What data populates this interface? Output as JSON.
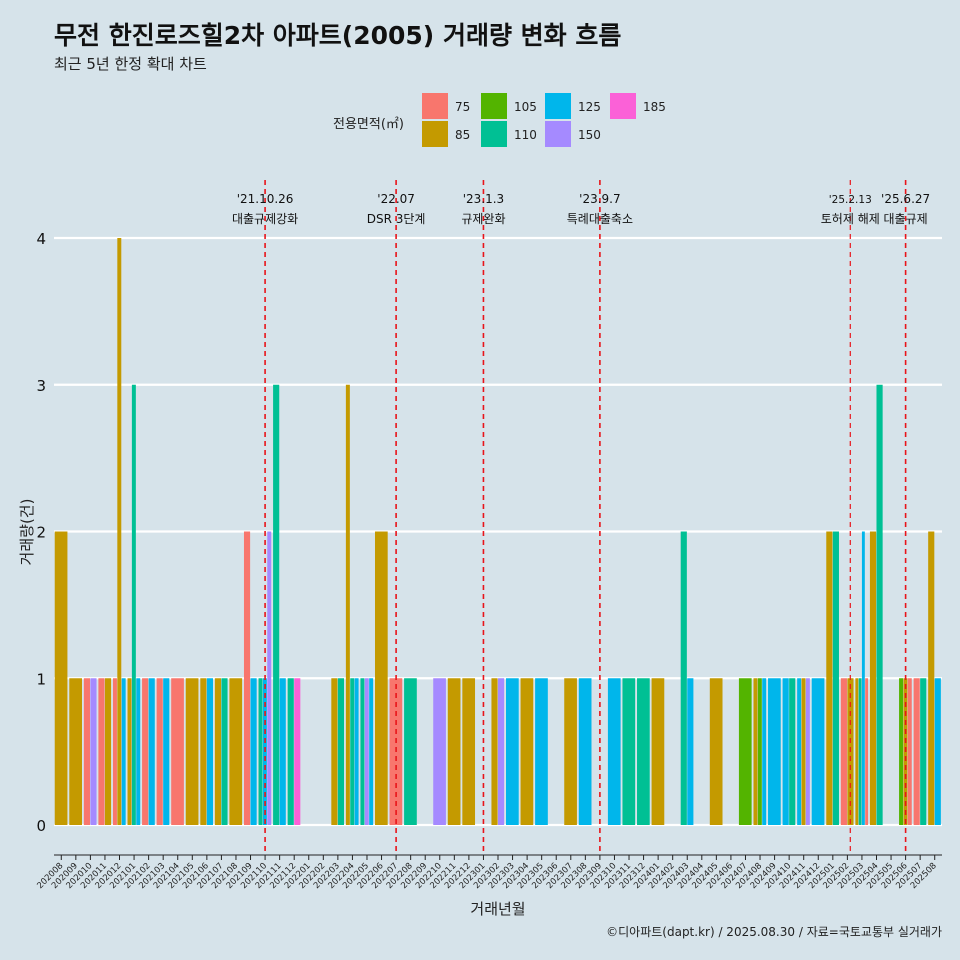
{
  "title": "무전 한진로즈힐2차 아파트(2005) 거래량 변화 흐름",
  "subtitle": "최근 5년 한정 확대 차트",
  "caption": "©디아파트(dapt.kr) / 2025.08.30 / 자료=국토교통부 실거래가",
  "legend": {
    "title": "전용면적(㎡)",
    "entries": [
      {
        "label": "75",
        "color": "#F8766D"
      },
      {
        "label": "85",
        "color": "#C49A00"
      },
      {
        "label": "105",
        "color": "#53B400"
      },
      {
        "label": "110",
        "color": "#00C094"
      },
      {
        "label": "125",
        "color": "#00B6EB"
      },
      {
        "label": "150",
        "color": "#A58AFF"
      },
      {
        "label": "185",
        "color": "#FB61D7"
      }
    ]
  },
  "chart_data": {
    "type": "bar",
    "xlabel": "거래년월",
    "ylabel": "거래량(건)",
    "ylim": [
      0,
      4
    ],
    "yticks": [
      0,
      1,
      2,
      3,
      4
    ],
    "grid": true,
    "legend_position": "top",
    "categories": [
      "202008",
      "202009",
      "202010",
      "202011",
      "202012",
      "202101",
      "202102",
      "202103",
      "202104",
      "202105",
      "202106",
      "202107",
      "202108",
      "202109",
      "202110",
      "202111",
      "202112",
      "202201",
      "202202",
      "202203",
      "202204",
      "202205",
      "202206",
      "202207",
      "202208",
      "202209",
      "202210",
      "202211",
      "202212",
      "202301",
      "202302",
      "202303",
      "202304",
      "202305",
      "202306",
      "202307",
      "202308",
      "202309",
      "202310",
      "202311",
      "202312",
      "202401",
      "202402",
      "202403",
      "202404",
      "202405",
      "202406",
      "202407",
      "202408",
      "202409",
      "202410",
      "202411",
      "202412",
      "202501",
      "202502",
      "202503",
      "202504",
      "202505",
      "202506",
      "202507",
      "202508"
    ],
    "transactions": [
      {
        "month": "202008",
        "bars": [
          {
            "area": "85",
            "count": 2
          }
        ]
      },
      {
        "month": "202009",
        "bars": [
          {
            "area": "85",
            "count": 1
          }
        ]
      },
      {
        "month": "202010",
        "bars": [
          {
            "area": "75",
            "count": 1
          },
          {
            "area": "150",
            "count": 1
          }
        ]
      },
      {
        "month": "202011",
        "bars": [
          {
            "area": "75",
            "count": 1
          },
          {
            "area": "85",
            "count": 1
          }
        ]
      },
      {
        "month": "202012",
        "bars": [
          {
            "area": "75",
            "count": 1
          },
          {
            "area": "85",
            "count": 4
          },
          {
            "area": "125",
            "count": 1
          }
        ]
      },
      {
        "month": "202101",
        "bars": [
          {
            "area": "85",
            "count": 1
          },
          {
            "area": "110",
            "count": 3
          },
          {
            "area": "125",
            "count": 1
          }
        ]
      },
      {
        "month": "202102",
        "bars": [
          {
            "area": "75",
            "count": 1
          },
          {
            "area": "125",
            "count": 1
          }
        ]
      },
      {
        "month": "202103",
        "bars": [
          {
            "area": "75",
            "count": 1
          },
          {
            "area": "125",
            "count": 1
          }
        ]
      },
      {
        "month": "202104",
        "bars": [
          {
            "area": "75",
            "count": 1
          }
        ]
      },
      {
        "month": "202105",
        "bars": [
          {
            "area": "85",
            "count": 1
          }
        ]
      },
      {
        "month": "202106",
        "bars": [
          {
            "area": "85",
            "count": 1
          },
          {
            "area": "125",
            "count": 1
          }
        ]
      },
      {
        "month": "202107",
        "bars": [
          {
            "area": "85",
            "count": 1
          },
          {
            "area": "110",
            "count": 1
          }
        ]
      },
      {
        "month": "202108",
        "bars": [
          {
            "area": "85",
            "count": 1
          }
        ]
      },
      {
        "month": "202109",
        "bars": [
          {
            "area": "75",
            "count": 2
          },
          {
            "area": "125",
            "count": 1
          }
        ]
      },
      {
        "month": "202110",
        "bars": [
          {
            "area": "110",
            "count": 1
          },
          {
            "area": "125",
            "count": 1
          },
          {
            "area": "150",
            "count": 2
          }
        ]
      },
      {
        "month": "202111",
        "bars": [
          {
            "area": "110",
            "count": 3
          },
          {
            "area": "125",
            "count": 1
          }
        ]
      },
      {
        "month": "202112",
        "bars": [
          {
            "area": "110",
            "count": 1
          },
          {
            "area": "185",
            "count": 1
          }
        ]
      },
      {
        "month": "202201",
        "bars": []
      },
      {
        "month": "202202",
        "bars": []
      },
      {
        "month": "202203",
        "bars": [
          {
            "area": "85",
            "count": 1
          },
          {
            "area": "110",
            "count": 1
          }
        ]
      },
      {
        "month": "202204",
        "bars": [
          {
            "area": "85",
            "count": 3
          },
          {
            "area": "110",
            "count": 1
          },
          {
            "area": "125",
            "count": 1
          }
        ]
      },
      {
        "month": "202205",
        "bars": [
          {
            "area": "110",
            "count": 1
          },
          {
            "area": "150",
            "count": 1
          },
          {
            "area": "125",
            "count": 1
          }
        ]
      },
      {
        "month": "202206",
        "bars": [
          {
            "area": "85",
            "count": 2
          }
        ]
      },
      {
        "month": "202207",
        "bars": [
          {
            "area": "75",
            "count": 1
          }
        ]
      },
      {
        "month": "202208",
        "bars": [
          {
            "area": "110",
            "count": 1
          }
        ]
      },
      {
        "month": "202209",
        "bars": []
      },
      {
        "month": "202210",
        "bars": [
          {
            "area": "150",
            "count": 1
          }
        ]
      },
      {
        "month": "202211",
        "bars": [
          {
            "area": "85",
            "count": 1
          }
        ]
      },
      {
        "month": "202212",
        "bars": [
          {
            "area": "85",
            "count": 1
          }
        ]
      },
      {
        "month": "202301",
        "bars": []
      },
      {
        "month": "202302",
        "bars": [
          {
            "area": "85",
            "count": 1
          },
          {
            "area": "150",
            "count": 1
          }
        ]
      },
      {
        "month": "202303",
        "bars": [
          {
            "area": "125",
            "count": 1
          }
        ]
      },
      {
        "month": "202304",
        "bars": [
          {
            "area": "85",
            "count": 1
          }
        ]
      },
      {
        "month": "202305",
        "bars": [
          {
            "area": "125",
            "count": 1
          }
        ]
      },
      {
        "month": "202306",
        "bars": []
      },
      {
        "month": "202307",
        "bars": [
          {
            "area": "85",
            "count": 1
          }
        ]
      },
      {
        "month": "202308",
        "bars": [
          {
            "area": "125",
            "count": 1
          }
        ]
      },
      {
        "month": "202309",
        "bars": []
      },
      {
        "month": "202310",
        "bars": [
          {
            "area": "125",
            "count": 1
          }
        ]
      },
      {
        "month": "202311",
        "bars": [
          {
            "area": "110",
            "count": 1
          }
        ]
      },
      {
        "month": "202312",
        "bars": [
          {
            "area": "110",
            "count": 1
          }
        ]
      },
      {
        "month": "202401",
        "bars": [
          {
            "area": "85",
            "count": 1
          }
        ]
      },
      {
        "month": "202402",
        "bars": []
      },
      {
        "month": "202403",
        "bars": [
          {
            "area": "110",
            "count": 2
          },
          {
            "area": "125",
            "count": 1
          }
        ]
      },
      {
        "month": "202404",
        "bars": []
      },
      {
        "month": "202405",
        "bars": [
          {
            "area": "85",
            "count": 1
          }
        ]
      },
      {
        "month": "202406",
        "bars": []
      },
      {
        "month": "202407",
        "bars": [
          {
            "area": "105",
            "count": 1
          }
        ]
      },
      {
        "month": "202408",
        "bars": [
          {
            "area": "85",
            "count": 1
          },
          {
            "area": "105",
            "count": 1
          },
          {
            "area": "125",
            "count": 1
          }
        ]
      },
      {
        "month": "202409",
        "bars": [
          {
            "area": "125",
            "count": 1
          }
        ]
      },
      {
        "month": "202410",
        "bars": [
          {
            "area": "125",
            "count": 1
          },
          {
            "area": "110",
            "count": 1
          }
        ]
      },
      {
        "month": "202411",
        "bars": [
          {
            "area": "125",
            "count": 1
          },
          {
            "area": "85",
            "count": 1
          },
          {
            "area": "150",
            "count": 1
          }
        ]
      },
      {
        "month": "202412",
        "bars": [
          {
            "area": "125",
            "count": 1
          }
        ]
      },
      {
        "month": "202501",
        "bars": [
          {
            "area": "85",
            "count": 2
          },
          {
            "area": "110",
            "count": 2
          }
        ]
      },
      {
        "month": "202502",
        "bars": [
          {
            "area": "75",
            "count": 1
          },
          {
            "area": "85",
            "count": 1
          }
        ]
      },
      {
        "month": "202503",
        "bars": [
          {
            "area": "85",
            "count": 1
          },
          {
            "area": "110",
            "count": 1
          },
          {
            "area": "125",
            "count": 2
          },
          {
            "area": "75",
            "count": 1
          }
        ]
      },
      {
        "month": "202504",
        "bars": [
          {
            "area": "85",
            "count": 2
          },
          {
            "area": "110",
            "count": 3
          }
        ]
      },
      {
        "month": "202505",
        "bars": []
      },
      {
        "month": "202506",
        "bars": [
          {
            "area": "105",
            "count": 1
          },
          {
            "area": "85",
            "count": 1
          },
          {
            "area": "75",
            "count": 1
          }
        ]
      },
      {
        "month": "202507",
        "bars": [
          {
            "area": "75",
            "count": 1
          },
          {
            "area": "110",
            "count": 1
          }
        ]
      },
      {
        "month": "202508",
        "bars": [
          {
            "area": "85",
            "count": 2
          },
          {
            "area": "125",
            "count": 1
          }
        ]
      }
    ],
    "events": [
      {
        "date": "'21.10.26",
        "label": "대출규제강화",
        "month": "202110",
        "small": false
      },
      {
        "date": "'22.07",
        "label": "DSR 3단계",
        "month": "202207",
        "small": false
      },
      {
        "date": "'23.1.3",
        "label": "규제완화",
        "month": "202301",
        "small": false
      },
      {
        "date": "'23.9.7",
        "label": "특례대출축소",
        "month": "202309",
        "small": false
      },
      {
        "date": "'25.2.13",
        "label": "토허제 해제",
        "month": "202502",
        "small": true
      },
      {
        "date": "'25.6.27",
        "label": "대출규제",
        "month": "202506",
        "small": false
      }
    ]
  }
}
